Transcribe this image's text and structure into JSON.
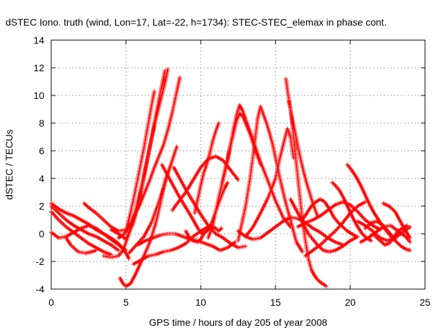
{
  "chart_data": {
    "type": "scatter",
    "title": "dSTEC Iono. truth (wind, Lon=17, Lat=-22, h=1734): STEC-STEC_elemax in phase cont.",
    "xlabel": "GPS time / hours of day 205 of year 2008",
    "ylabel": "dSTEC  / TECUs",
    "xlim": [
      0,
      25
    ],
    "ylim": [
      -4,
      14
    ],
    "xticks": [
      0,
      5,
      10,
      15,
      20,
      25
    ],
    "yticks": [
      -4,
      -2,
      0,
      2,
      4,
      6,
      8,
      10,
      12,
      14
    ],
    "grid": true,
    "marker": "+",
    "color": "#ff0000",
    "series": [
      {
        "x": [
          0.0,
          0.5,
          1.0,
          1.5,
          2.0,
          2.5,
          3.0,
          3.5,
          4.0,
          4.5
        ],
        "y": [
          2.0,
          1.5,
          1.0,
          0.6,
          0.3,
          0.0,
          -0.2,
          -0.5,
          -0.8,
          -1.2
        ]
      },
      {
        "x": [
          0.0,
          0.5,
          1.0,
          1.5,
          2.0,
          2.5,
          3.0,
          3.5,
          4.0,
          4.5,
          5.0,
          5.2
        ],
        "y": [
          2.2,
          1.8,
          1.5,
          1.3,
          1.0,
          0.7,
          0.3,
          0.0,
          -0.3,
          -0.7,
          -1.4,
          -1.8
        ]
      },
      {
        "x": [
          0.0,
          0.5,
          1.0,
          1.5,
          2.0,
          2.5,
          3.0,
          3.5,
          4.0
        ],
        "y": [
          1.6,
          1.0,
          0.5,
          0.1,
          -0.3,
          -0.7,
          -1.0,
          -1.3,
          -1.5
        ]
      },
      {
        "x": [
          0.0,
          0.5,
          1.0,
          1.5,
          2.0,
          2.5,
          3.0,
          3.5,
          4.0,
          4.5,
          5.0
        ],
        "y": [
          0.1,
          -0.3,
          -0.2,
          0.1,
          0.4,
          0.6,
          0.4,
          0.0,
          -0.4,
          -0.8,
          -1.2
        ]
      },
      {
        "x": [
          1.0,
          1.3,
          1.8,
          2.3,
          2.7,
          3.0
        ],
        "y": [
          -0.3,
          -0.8,
          -1.3,
          -1.4,
          -1.3,
          -1.2
        ]
      },
      {
        "x": [
          2.2,
          2.5,
          3.0,
          3.5,
          4.0,
          4.5,
          5.0
        ],
        "y": [
          2.2,
          1.9,
          1.5,
          1.0,
          0.5,
          0.2,
          0.3
        ]
      },
      {
        "x": [
          3.5,
          4.0,
          4.5,
          4.8,
          5.0,
          5.3,
          5.6,
          5.9,
          6.2,
          6.5,
          6.8,
          7.0,
          7.3,
          7.6
        ],
        "y": [
          -1.6,
          -1.7,
          -1.6,
          -1.2,
          -0.6,
          0.3,
          1.5,
          2.8,
          4.2,
          5.8,
          7.4,
          8.6,
          10.2,
          11.8
        ]
      },
      {
        "x": [
          4.0,
          4.5,
          5.0,
          5.5,
          5.8,
          6.1,
          6.4,
          6.7,
          7.0,
          7.3,
          7.6,
          7.8
        ],
        "y": [
          0.3,
          0.0,
          -0.4,
          0.8,
          2.0,
          3.5,
          5.2,
          6.8,
          8.3,
          9.6,
          10.9,
          11.9
        ]
      },
      {
        "x": [
          4.5,
          4.8,
          5.1,
          5.4,
          5.7,
          6.0,
          6.3,
          6.6,
          6.9,
          7.2,
          7.5,
          7.8,
          8.1,
          8.4,
          8.6
        ],
        "y": [
          -0.3,
          -0.1,
          0.3,
          0.9,
          1.6,
          2.3,
          3.1,
          3.9,
          4.8,
          5.6,
          6.4,
          7.5,
          8.8,
          10.3,
          11.3
        ]
      },
      {
        "x": [
          5.0,
          5.3,
          5.6,
          5.9,
          6.2,
          6.5,
          6.8,
          6.9
        ],
        "y": [
          0.2,
          1.5,
          3.0,
          4.6,
          6.2,
          8.0,
          9.8,
          10.3
        ]
      },
      {
        "x": [
          5.2,
          5.7,
          6.2,
          6.7,
          7.2,
          7.6,
          8.0,
          8.4
        ],
        "y": [
          -1.4,
          -0.8,
          -0.2,
          0.8,
          2.3,
          3.6,
          5.0,
          6.3
        ]
      },
      {
        "x": [
          4.6,
          4.8,
          5.0,
          5.3,
          5.6,
          5.9,
          6.2,
          6.6,
          7.0,
          7.3,
          7.6,
          8.0
        ],
        "y": [
          -3.2,
          -3.6,
          -3.8,
          -3.6,
          -3.0,
          -2.3,
          -1.6,
          -0.6,
          0.8,
          2.2,
          3.8,
          5.0
        ]
      },
      {
        "x": [
          5.5,
          6.0,
          6.5,
          7.0,
          7.5,
          8.0,
          8.5,
          9.0,
          9.5,
          10.0,
          10.5
        ],
        "y": [
          -2.2,
          -1.9,
          -1.6,
          -1.5,
          -1.3,
          -1.2,
          -1.0,
          -0.7,
          -0.2,
          0.2,
          0.5
        ]
      },
      {
        "x": [
          5.8,
          6.3,
          6.8,
          7.3,
          7.8,
          8.3,
          8.8,
          9.3,
          9.8,
          10.3,
          10.8,
          11.3,
          11.8,
          12.3
        ],
        "y": [
          -0.8,
          -0.5,
          -0.3,
          -0.1,
          0.0,
          0.0,
          -0.2,
          -0.4,
          -0.5,
          -0.7,
          -0.9,
          -1.2,
          -1.0,
          -0.6
        ]
      },
      {
        "x": [
          7.4,
          8.0,
          8.5,
          9.0,
          9.5,
          9.8,
          10.1,
          10.4,
          10.7,
          11.0,
          11.3,
          11.6,
          11.8
        ],
        "y": [
          5.0,
          3.8,
          2.8,
          1.9,
          1.0,
          0.4,
          0.0,
          0.2,
          0.7,
          1.6,
          2.5,
          3.3,
          3.7
        ]
      },
      {
        "x": [
          8.1,
          8.5,
          9.0,
          9.5,
          10.0,
          10.5,
          11.0,
          11.5,
          12.0,
          12.5
        ],
        "y": [
          1.7,
          2.3,
          3.0,
          3.9,
          4.8,
          5.4,
          5.6,
          5.3,
          4.6,
          3.9
        ]
      },
      {
        "x": [
          8.2,
          8.5,
          9.0,
          9.5,
          10.0,
          10.5,
          11.0,
          11.5,
          12.0,
          12.5,
          13.0
        ],
        "y": [
          4.8,
          4.2,
          3.2,
          2.3,
          1.4,
          0.6,
          0.0,
          -0.3,
          -0.7,
          -1.0,
          -0.9
        ]
      },
      {
        "x": [
          9.0,
          9.2,
          9.5,
          9.8,
          10.0,
          10.2,
          10.5,
          10.8,
          11.0,
          11.2,
          11.4
        ],
        "y": [
          0.2,
          -0.2,
          -0.5,
          -0.6,
          -0.4,
          0.0,
          0.3,
          0.5,
          0.4,
          0.2,
          0.4
        ]
      },
      {
        "x": [
          9.6,
          9.8,
          10.0,
          10.2,
          10.4,
          10.6,
          10.8,
          11.0,
          11.2
        ],
        "y": [
          1.5,
          2.5,
          3.5,
          4.4,
          5.0,
          5.8,
          6.7,
          7.4,
          8.0
        ]
      },
      {
        "x": [
          10.5,
          10.8,
          11.0,
          11.2,
          11.5,
          11.8,
          12.0,
          12.2,
          12.4,
          12.6,
          12.8,
          13.0,
          13.3,
          13.6,
          14.0
        ],
        "y": [
          -0.3,
          0.6,
          1.6,
          2.6,
          3.9,
          5.3,
          6.4,
          7.3,
          8.2,
          8.7,
          8.5,
          8.0,
          7.2,
          6.2,
          5.0
        ]
      },
      {
        "x": [
          11.4,
          11.7,
          12.0,
          12.2,
          12.4,
          12.6,
          12.8,
          13.0,
          13.2,
          13.5,
          13.8,
          14.0,
          14.5,
          15.0,
          15.5,
          16.0
        ],
        "y": [
          3.6,
          5.0,
          6.5,
          7.6,
          8.6,
          9.3,
          8.9,
          8.3,
          7.7,
          6.8,
          5.8,
          5.2,
          3.8,
          2.4,
          1.2,
          0.5
        ]
      },
      {
        "x": [
          12.5,
          13.0,
          13.3,
          13.6,
          13.8,
          14.0,
          14.2,
          14.4,
          14.6,
          14.8,
          15.0,
          15.3,
          15.6,
          16.0,
          16.4,
          16.8
        ],
        "y": [
          -0.5,
          2.0,
          4.0,
          6.5,
          8.3,
          9.2,
          8.6,
          8.0,
          7.3,
          6.5,
          5.5,
          4.0,
          2.6,
          1.0,
          -0.6,
          -1.3
        ]
      },
      {
        "x": [
          13.0,
          13.5,
          14.0,
          14.5,
          15.0,
          15.3,
          15.6,
          15.8,
          16.0,
          16.2
        ],
        "y": [
          -0.2,
          0.5,
          1.5,
          2.6,
          4.0,
          5.5,
          6.8,
          7.6,
          7.0,
          5.5
        ]
      },
      {
        "x": [
          12.5,
          13.0,
          13.5,
          14.0,
          14.5,
          15.0,
          15.5,
          16.0,
          16.5,
          17.0,
          17.5,
          18.0,
          18.5,
          19.0,
          19.5
        ],
        "y": [
          0.2,
          -0.2,
          -0.4,
          -0.3,
          0.1,
          0.5,
          0.9,
          1.2,
          1.1,
          0.8,
          0.4,
          0.1,
          -0.3,
          -0.6,
          -0.8
        ]
      },
      {
        "x": [
          15.7,
          15.8,
          16.0,
          16.2,
          16.4,
          16.6,
          16.8,
          17.0,
          17.2,
          17.4,
          17.6,
          17.8,
          18.0,
          18.4
        ],
        "y": [
          11.2,
          10.4,
          9.0,
          7.2,
          5.0,
          3.0,
          1.0,
          -0.5,
          -1.8,
          -2.6,
          -3.0,
          -3.3,
          -3.5,
          -3.8
        ]
      },
      {
        "x": [
          15.9,
          16.1,
          16.3,
          16.5,
          16.7,
          16.9,
          17.1,
          17.3,
          17.5,
          17.8
        ],
        "y": [
          9.6,
          8.4,
          7.4,
          6.3,
          5.3,
          4.4,
          3.6,
          2.9,
          2.2,
          1.3
        ]
      },
      {
        "x": [
          16.0,
          16.3,
          16.6,
          16.9,
          17.2,
          17.5,
          17.8,
          18.2,
          18.6,
          19.0,
          19.5,
          20.0,
          20.5
        ],
        "y": [
          2.5,
          1.9,
          1.3,
          0.6,
          0.0,
          -0.4,
          -0.8,
          -1.2,
          -1.3,
          -1.2,
          -0.9,
          -0.5,
          -0.2
        ]
      },
      {
        "x": [
          16.8,
          17.1,
          17.4,
          17.7,
          18.0,
          18.3,
          18.6,
          18.9,
          19.2,
          19.5,
          19.8,
          20.1,
          20.4
        ],
        "y": [
          1.0,
          1.5,
          2.0,
          2.3,
          2.5,
          2.3,
          1.8,
          1.2,
          0.8,
          0.5,
          0.2,
          0.0,
          -0.2
        ]
      },
      {
        "x": [
          17.0,
          17.5,
          18.0,
          18.5,
          19.0,
          19.5,
          20.0,
          20.5,
          21.0
        ],
        "y": [
          -1.6,
          -1.2,
          -0.8,
          -0.3,
          0.2,
          0.8,
          1.5,
          2.0,
          2.3
        ]
      },
      {
        "x": [
          16.5,
          17.0,
          17.5,
          18.0,
          18.5,
          19.0,
          19.5,
          20.0,
          20.5,
          21.0,
          21.5,
          22.0
        ],
        "y": [
          0.5,
          0.8,
          1.0,
          1.3,
          1.7,
          2.1,
          2.3,
          2.1,
          1.6,
          1.0,
          0.6,
          0.3
        ]
      },
      {
        "x": [
          18.8,
          19.0,
          19.3,
          19.6,
          19.9,
          20.2,
          20.5,
          20.8,
          21.1,
          21.4
        ],
        "y": [
          3.7,
          3.5,
          3.1,
          2.5,
          1.8,
          1.1,
          0.5,
          0.0,
          -0.3,
          -0.5
        ]
      },
      {
        "x": [
          19.8,
          20.1,
          20.4,
          20.7,
          21.0,
          21.3,
          21.6,
          21.9,
          22.2,
          22.5,
          22.8,
          23.1,
          23.4,
          23.7,
          24.0
        ],
        "y": [
          5.0,
          4.6,
          4.1,
          3.5,
          2.8,
          2.1,
          1.5,
          1.0,
          0.5,
          0.1,
          -0.3,
          -0.6,
          -0.9,
          -1.1,
          -1.2
        ]
      },
      {
        "x": [
          20.5,
          21.0,
          21.5,
          22.0,
          22.5,
          23.0,
          23.5,
          24.0
        ],
        "y": [
          0.9,
          0.6,
          0.2,
          -0.3,
          -0.5,
          -0.3,
          0.1,
          0.5
        ]
      },
      {
        "x": [
          20.7,
          21.2,
          21.7,
          22.2,
          22.7,
          23.2,
          23.7,
          24.0
        ],
        "y": [
          -0.6,
          -0.3,
          0.1,
          0.5,
          0.6,
          0.2,
          -0.2,
          -0.6
        ]
      },
      {
        "x": [
          21.5,
          22.0,
          22.3,
          22.6,
          22.9,
          23.2,
          23.5,
          23.8
        ],
        "y": [
          0.0,
          -0.5,
          -0.8,
          -0.7,
          -0.3,
          0.2,
          0.4,
          0.6
        ]
      },
      {
        "x": [
          22.2,
          22.6,
          23.0,
          23.3,
          23.6,
          24.0
        ],
        "y": [
          2.2,
          2.0,
          1.6,
          1.0,
          0.4,
          -0.3
        ]
      },
      {
        "x": [
          21.0,
          21.4,
          21.8,
          22.2,
          22.6,
          23.0
        ],
        "y": [
          0.4,
          0.8,
          0.9,
          0.6,
          0.1,
          -0.4
        ]
      }
    ]
  }
}
